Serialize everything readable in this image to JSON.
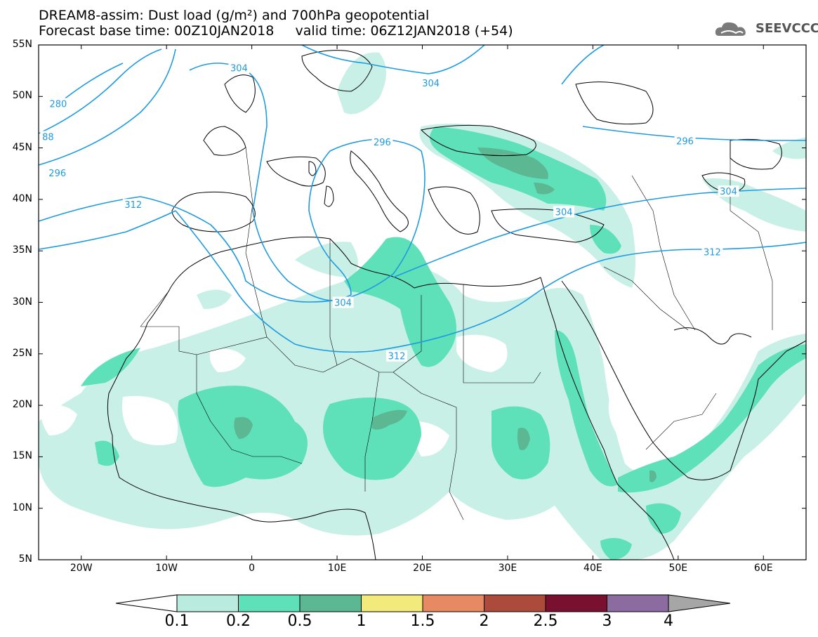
{
  "header": {
    "title_line1": "DREAM8-assim: Dust load (g/m²) and 700hPa geopotential",
    "title_line2": "Forecast base time: 00Z10JAN2018     valid time: 06Z12JAN2018 (+54)",
    "logo_text": "SEEVCCC"
  },
  "map": {
    "lon_range": [
      -25,
      65
    ],
    "lat_range": [
      5,
      55
    ],
    "lat_ticks": [
      {
        "value": 55,
        "label": "55N"
      },
      {
        "value": 50,
        "label": "50N"
      },
      {
        "value": 45,
        "label": "45N"
      },
      {
        "value": 40,
        "label": "40N"
      },
      {
        "value": 35,
        "label": "35N"
      },
      {
        "value": 30,
        "label": "30N"
      },
      {
        "value": 25,
        "label": "25N"
      },
      {
        "value": 20,
        "label": "20N"
      },
      {
        "value": 15,
        "label": "15N"
      },
      {
        "value": 10,
        "label": "10N"
      },
      {
        "value": 5,
        "label": "5N"
      }
    ],
    "lon_ticks": [
      {
        "value": -20,
        "label": "20W"
      },
      {
        "value": -10,
        "label": "10W"
      },
      {
        "value": 0,
        "label": "0"
      },
      {
        "value": 10,
        "label": "10E"
      },
      {
        "value": 20,
        "label": "20E"
      },
      {
        "value": 30,
        "label": "30E"
      },
      {
        "value": 40,
        "label": "40E"
      },
      {
        "value": 50,
        "label": "50E"
      },
      {
        "value": 60,
        "label": "60E"
      }
    ],
    "contour_labels": [
      {
        "text": "280",
        "lon": -22.7,
        "lat": 49.3
      },
      {
        "text": "88",
        "lon": -23.9,
        "lat": 46.1
      },
      {
        "text": "296",
        "lon": -22.8,
        "lat": 42.6
      },
      {
        "text": "304",
        "lon": -1.5,
        "lat": 52.8
      },
      {
        "text": "304",
        "lon": 21.0,
        "lat": 51.3
      },
      {
        "text": "296",
        "lon": 15.3,
        "lat": 45.6
      },
      {
        "text": "296",
        "lon": 50.8,
        "lat": 45.7
      },
      {
        "text": "304",
        "lon": 55.9,
        "lat": 40.8
      },
      {
        "text": "312",
        "lon": -13.9,
        "lat": 39.5
      },
      {
        "text": "304",
        "lon": 36.6,
        "lat": 38.8
      },
      {
        "text": "312",
        "lon": 54.0,
        "lat": 34.9
      },
      {
        "text": "304",
        "lon": 10.7,
        "lat": 30.0
      },
      {
        "text": "312",
        "lon": 17.0,
        "lat": 24.8
      }
    ]
  },
  "colorbar": {
    "labels": [
      "0.1",
      "0.2",
      "0.5",
      "1",
      "1.5",
      "2",
      "2.5",
      "3",
      "4"
    ],
    "colors": [
      "#b9ecdf",
      "#5ee0b8",
      "#5cb893",
      "#f2ea7a",
      "#e78a63",
      "#ac4a3c",
      "#7a1030",
      "#8c6ba0"
    ],
    "under_color": "#ffffff",
    "over_color": "#a6a6a6"
  },
  "colors": {
    "contour": "#1e9be0",
    "dust_low": "#c9f0e6",
    "dust_mid": "#5ee0b8",
    "dust_high": "#5cb893"
  }
}
